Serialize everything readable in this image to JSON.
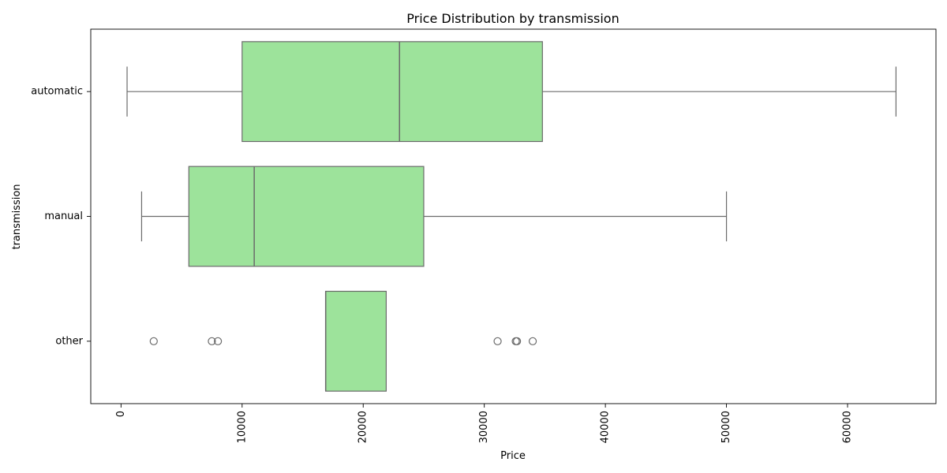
{
  "chart_data": {
    "type": "boxplot",
    "orientation": "horizontal",
    "title": "Price Distribution by transmission",
    "xlabel": "Price",
    "ylabel": "transmission",
    "xlim": [
      -2500,
      67300
    ],
    "xticks": [
      0,
      10000,
      20000,
      30000,
      40000,
      50000,
      60000
    ],
    "xtick_labels": [
      "0",
      "10000",
      "20000",
      "30000",
      "40000",
      "50000",
      "60000"
    ],
    "xtick_rotation": 90,
    "categories": [
      "automatic",
      "manual",
      "other"
    ],
    "box_color": "#9de39b",
    "edge_color": "#6b6b6b",
    "boxes": [
      {
        "category": "automatic",
        "whisker_low": 500,
        "q1": 10000,
        "median": 23000,
        "q3": 34800,
        "whisker_high": 64000,
        "outliers": []
      },
      {
        "category": "manual",
        "whisker_low": 1700,
        "q1": 5600,
        "median": 11000,
        "q3": 25000,
        "whisker_high": 50000,
        "outliers": []
      },
      {
        "category": "other",
        "whisker_low": 16900,
        "q1": 16900,
        "median": 16900,
        "q3": 21900,
        "whisker_high": 21900,
        "outliers": [
          2700,
          7500,
          8000,
          31100,
          32600,
          32700,
          34000
        ]
      }
    ],
    "grid": false,
    "legend": "none"
  }
}
